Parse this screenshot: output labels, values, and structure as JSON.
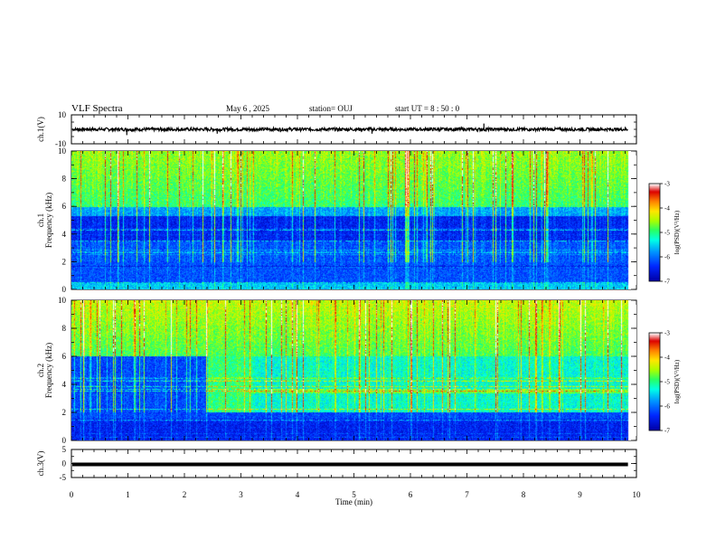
{
  "header": {
    "title": "VLF Spectra",
    "date": "May 6  , 2025",
    "station": "station= OUJ",
    "start_ut": "start  UT =   8  : 50 : 0"
  },
  "colors": {
    "ink": "#000000",
    "background": "#ffffff",
    "colormap": [
      "#0000a8",
      "#0028ff",
      "#00a0ff",
      "#00ffe0",
      "#30ff60",
      "#a8ff00",
      "#ffe800",
      "#ff8000",
      "#e80000",
      "#ffffff"
    ]
  },
  "chart_data": [
    {
      "type": "line",
      "panel": "ch1",
      "ylabel": "ch.1(V)",
      "ylim": [
        -10,
        10
      ],
      "ytick_labels": [
        "10",
        "-10"
      ],
      "baseline": 0,
      "spikes": [
        {
          "x": 0.98,
          "y": -4
        },
        {
          "x": 2.58,
          "y": -3
        },
        {
          "x": 3.7,
          "y": -2
        },
        {
          "x": 5.32,
          "y": -3
        },
        {
          "x": 7.3,
          "y": 4
        }
      ]
    },
    {
      "type": "heatmap",
      "panel": "ch2_spectrogram",
      "ylabel": "ch.1\nFrequency (kHz)",
      "ylim": [
        0,
        10
      ],
      "ytick_labels": [
        "0",
        "2",
        "4",
        "6",
        "8",
        "10"
      ],
      "colorbar": {
        "label": "log(PSD)(V²/Hz)",
        "range": [
          -7,
          -3
        ],
        "tick_labels": [
          "-3",
          "-4",
          "-5",
          "-6",
          "-7"
        ]
      },
      "features": "broadband sferics in 6–10 kHz band; weak signal 1–6 kHz; narrowband lines at low frequency"
    },
    {
      "type": "heatmap",
      "panel": "ch2_spectrogram",
      "ylabel": "ch.2\nFrequency (kHz)",
      "ylim": [
        0,
        10
      ],
      "ytick_labels": [
        "0",
        "2",
        "4",
        "6",
        "8",
        "10"
      ],
      "colorbar": {
        "label": "log(PSD)(V²/Hz)",
        "range": [
          -7,
          -3
        ],
        "tick_labels": [
          "-3",
          "-4",
          "-5",
          "-6",
          "-7"
        ]
      },
      "features": "enhanced emission 2–6 kHz from about 2.5 min; sferics throughout; line near 3.5 kHz"
    },
    {
      "type": "line",
      "panel": "ch3",
      "ylabel": "ch.3(V)",
      "ylim": [
        -5,
        5
      ],
      "ytick_labels": [
        "5",
        "0",
        "-5"
      ],
      "baseline": 0
    }
  ],
  "xaxis": {
    "xlabel": "Time  (min)",
    "xlim": [
      0,
      10
    ],
    "tick_labels": [
      "0",
      "1",
      "2",
      "3",
      "4",
      "5",
      "6",
      "7",
      "8",
      "9",
      "10"
    ],
    "data_end": 9.85
  }
}
